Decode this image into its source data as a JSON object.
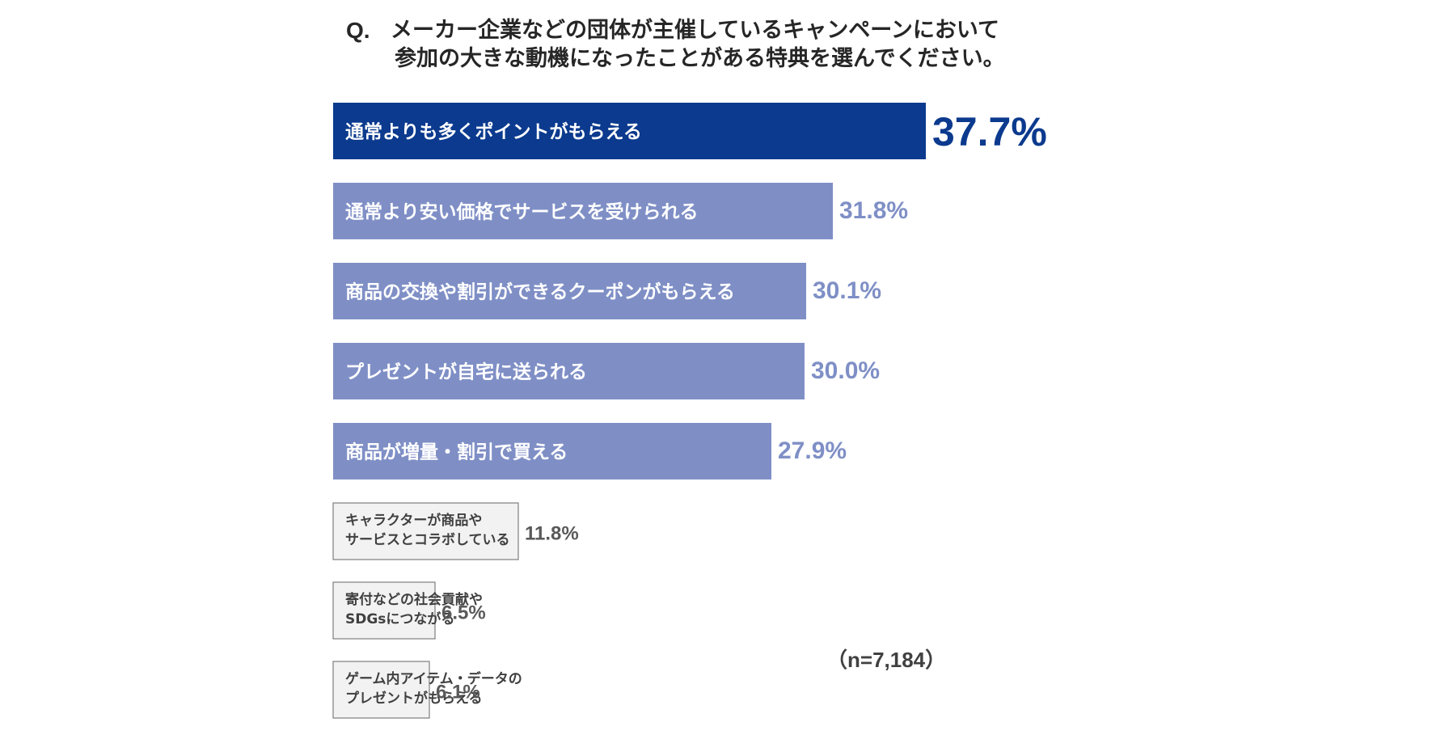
{
  "question": {
    "mark": "Q.",
    "line1": "メーカー企業などの団体が主催しているキャンペーンにおいて",
    "line2": "参加の大きな動機になったことがある特典を選んでください。"
  },
  "sample_note": "（n=7,184）",
  "colors": {
    "top_bar": "#0b3a8e",
    "mid_bar": "#7f8fc6",
    "low_bar": "#f2f2f2",
    "low_bar_border": "#7f7f7f",
    "top_value": "#0b3a8e",
    "mid_value": "#7f8fc6",
    "low_value": "#595959",
    "bar_text_light": "#ffffff",
    "bar_text_dark": "#404040"
  },
  "chart_data": {
    "type": "bar",
    "orientation": "horizontal",
    "title": "メーカー企業などの団体が主催しているキャンペーンにおいて 参加の大きな動機になったことがある特典を選んでください。",
    "xlabel": "",
    "ylabel": "",
    "unit": "%",
    "xlim": [
      0,
      37.7
    ],
    "grid": false,
    "categories": [
      "通常よりも多くポイントがもらえる",
      "通常より安い価格でサービスを受けられる",
      "商品の交換や割引ができるクーポンがもらえる",
      "プレゼントが自宅に送られる",
      "商品が増量・割引で買える",
      "キャラクターが商品や\nサービスとコラボしている",
      "寄付などの社会貢献や\nSDGsにつながる",
      "ゲーム内アイテム・データの\nプレゼントがもらえる"
    ],
    "values": [
      37.7,
      31.8,
      30.1,
      30.0,
      27.9,
      11.8,
      6.5,
      6.1
    ],
    "value_labels": [
      "37.7%",
      "31.8%",
      "30.1%",
      "30.0%",
      "27.9%",
      "11.8%",
      "6.5%",
      "6.1%"
    ],
    "tiers": [
      "top",
      "mid",
      "mid",
      "mid",
      "mid",
      "low",
      "low",
      "low"
    ]
  }
}
